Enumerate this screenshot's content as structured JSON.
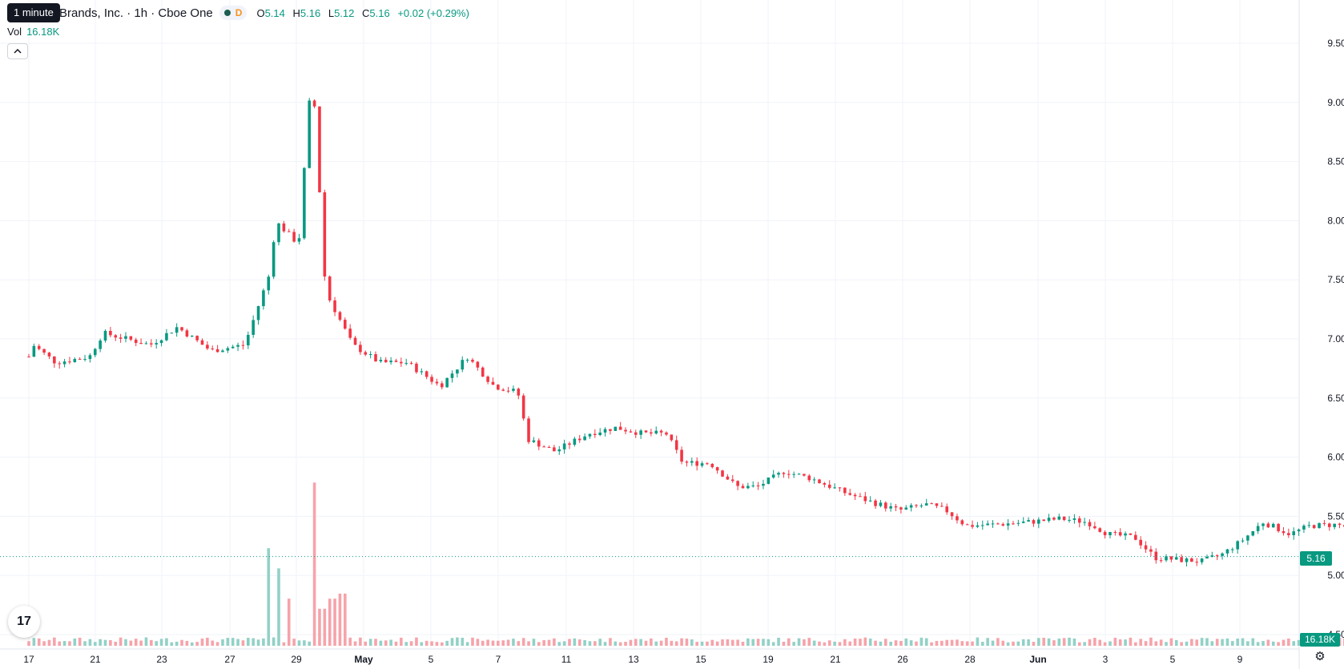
{
  "tooltip": "1 minute",
  "legend": {
    "symbol": "Brands, Inc. · 1h · Cboe One",
    "d_badge": "D",
    "o_label": "O",
    "o_value": "5.14",
    "h_label": "H",
    "h_value": "5.16",
    "l_label": "L",
    "l_value": "5.12",
    "c_label": "C",
    "c_value": "5.16",
    "change": "+0.02 (+0.29%)"
  },
  "volume_legend": {
    "label": "Vol",
    "value": "16.18K"
  },
  "collapse_icon": "chevron-up-icon",
  "logo_icon": "tradingview-logo-icon",
  "logo_text": "17",
  "settings_icon": "gear-icon",
  "current_price_label": "5.16",
  "current_volume_label": "16.18K",
  "colors": {
    "up": "#089981",
    "down": "#f23645",
    "up_volume": "#92d1c7",
    "down_volume": "#f6a3aa",
    "grid": "#f0f3fa"
  },
  "chart_data": {
    "type": "candlestick",
    "timeframe": "1h",
    "ylim": [
      4.5,
      9.6
    ],
    "yticks": [
      "9.50",
      "9.00",
      "8.50",
      "8.00",
      "7.50",
      "7.00",
      "6.50",
      "6.00",
      "5.50",
      "5.00",
      "4.50"
    ],
    "xticks": [
      "17",
      "21",
      "23",
      "27",
      "29",
      "May",
      "5",
      "7",
      "11",
      "13",
      "15",
      "19",
      "21",
      "26",
      "28",
      "Jun",
      "3",
      "5",
      "9"
    ],
    "grid": true,
    "last_price": 5.16,
    "anchors": [
      [
        0,
        6.85
      ],
      [
        0.06,
        6.95
      ],
      [
        0.4,
        6.8
      ],
      [
        0.9,
        6.85
      ],
      [
        1.1,
        7.05
      ],
      [
        1.8,
        6.95
      ],
      [
        2.2,
        7.1
      ],
      [
        2.7,
        6.9
      ],
      [
        3.2,
        6.95
      ],
      [
        3.6,
        7.6
      ],
      [
        3.65,
        8.0
      ],
      [
        4.0,
        7.8
      ],
      [
        4.2,
        9.3
      ],
      [
        4.4,
        7.4
      ],
      [
        4.8,
        6.95
      ],
      [
        5.2,
        6.8
      ],
      [
        5.6,
        6.8
      ],
      [
        6.1,
        6.6
      ],
      [
        6.5,
        6.85
      ],
      [
        6.9,
        6.6
      ],
      [
        7.25,
        6.55
      ],
      [
        7.4,
        6.15
      ],
      [
        7.8,
        6.05
      ],
      [
        8.3,
        6.2
      ],
      [
        8.7,
        6.25
      ],
      [
        9.1,
        6.2
      ],
      [
        9.45,
        6.2
      ],
      [
        9.7,
        5.95
      ],
      [
        10.1,
        5.95
      ],
      [
        10.5,
        5.75
      ],
      [
        10.8,
        5.75
      ],
      [
        11.2,
        5.88
      ],
      [
        11.6,
        5.82
      ],
      [
        12.1,
        5.7
      ],
      [
        12.5,
        5.62
      ],
      [
        12.9,
        5.55
      ],
      [
        13.3,
        5.6
      ],
      [
        13.6,
        5.55
      ],
      [
        13.9,
        5.42
      ],
      [
        14.3,
        5.43
      ],
      [
        14.8,
        5.45
      ],
      [
        15.3,
        5.48
      ],
      [
        15.7,
        5.45
      ],
      [
        16.0,
        5.35
      ],
      [
        16.4,
        5.32
      ],
      [
        16.7,
        5.15
      ],
      [
        17.1,
        5.13
      ],
      [
        17.4,
        5.12
      ],
      [
        17.7,
        5.18
      ],
      [
        18.0,
        5.3
      ],
      [
        18.3,
        5.45
      ],
      [
        18.7,
        5.35
      ],
      [
        19.0,
        5.42
      ],
      [
        19.4,
        5.43
      ],
      [
        19.7,
        5.38
      ],
      [
        20.0,
        5.32
      ],
      [
        20.3,
        5.4
      ],
      [
        20.7,
        5.42
      ],
      [
        21.0,
        5.6
      ],
      [
        21.4,
        5.62
      ],
      [
        21.7,
        5.68
      ],
      [
        22.0,
        5.65
      ],
      [
        22.3,
        5.6
      ],
      [
        22.6,
        5.55
      ],
      [
        23.0,
        5.55
      ],
      [
        23.4,
        5.45
      ],
      [
        23.8,
        5.38
      ],
      [
        24.1,
        5.2
      ],
      [
        24.5,
        5.15
      ],
      [
        24.8,
        5.22
      ],
      [
        25.2,
        5.2
      ],
      [
        25.4,
        5.18
      ],
      [
        25.6,
        4.95
      ],
      [
        25.9,
        4.92
      ],
      [
        26.2,
        5.05
      ],
      [
        26.5,
        5.05
      ],
      [
        26.7,
        5.02
      ],
      [
        26.85,
        5.25
      ],
      [
        27.0,
        5.18
      ],
      [
        27.15,
        5.16
      ]
    ],
    "candle_count": 360,
    "volume": {
      "spikes": [
        [
          3.55,
          0.58
        ],
        [
          3.7,
          0.46
        ],
        [
          3.85,
          0.28
        ],
        [
          4.2,
          0.97
        ],
        [
          4.35,
          0.22
        ],
        [
          4.5,
          0.28
        ],
        [
          4.65,
          0.31
        ],
        [
          25.4,
          0.15
        ],
        [
          25.6,
          0.2
        ],
        [
          26.85,
          0.12
        ]
      ]
    }
  }
}
